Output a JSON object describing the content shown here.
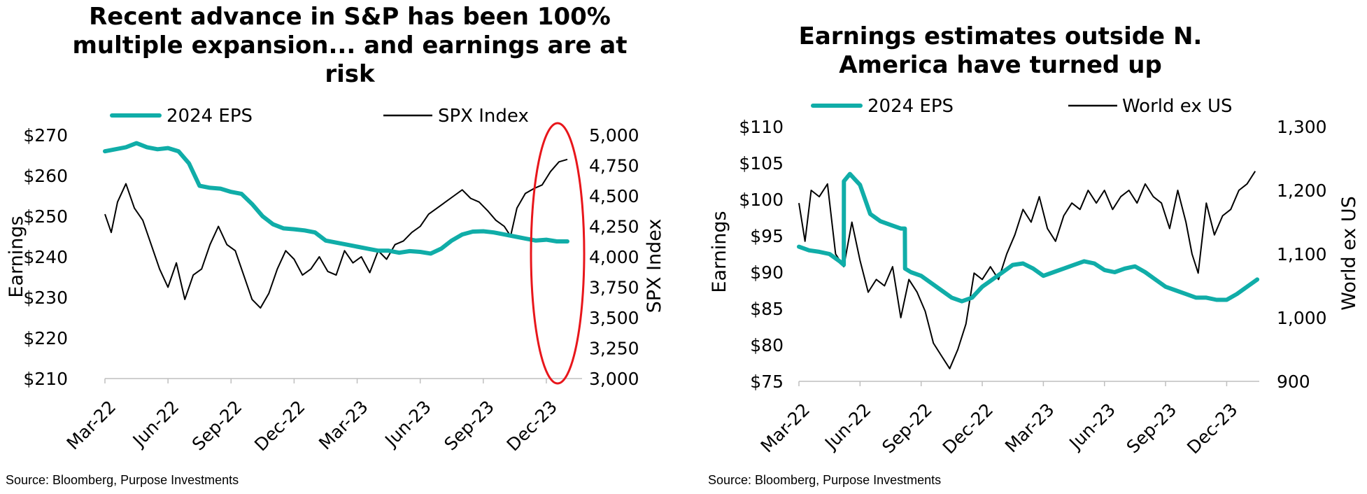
{
  "charts": [
    {
      "title": "Recent advance in S&P has been 100% multiple expansion... and earnings are at risk",
      "source": "Source: Bloomberg, Purpose Investments",
      "legend": {
        "eps": "2024 EPS",
        "index": "SPX Index"
      },
      "colors": {
        "eps": "#10ADA8",
        "index": "#000000",
        "highlight": "#E8161B"
      }
    },
    {
      "title": "Earnings estimates outside N. America have turned up",
      "source": "Source: Bloomberg, Purpose Investments",
      "legend": {
        "eps": "2024 EPS",
        "index": "World ex US"
      },
      "colors": {
        "eps": "#10ADA8",
        "index": "#000000"
      }
    }
  ],
  "chart_data": [
    {
      "type": "line",
      "title": "Recent advance in S&P has been 100% multiple expansion... and earnings are at risk",
      "xlabel": "",
      "ylabel": "Earnings",
      "y2label": "SPX Index",
      "xlim": [
        0,
        22.7
      ],
      "x_ticks": [
        "Mar-22",
        "Jun-22",
        "Sep-22",
        "Dec-22",
        "Mar-23",
        "Jun-23",
        "Sep-23",
        "Dec-23"
      ],
      "ylim": [
        210,
        270
      ],
      "y_ticks": [
        "$210",
        "$220",
        "$230",
        "$240",
        "$250",
        "$260",
        "$270"
      ],
      "y2lim": [
        3000,
        5000
      ],
      "y2_ticks": [
        "3,000",
        "3,250",
        "3,500",
        "3,750",
        "4,000",
        "4,250",
        "4,500",
        "4,750",
        "5,000"
      ],
      "legend_position": "top",
      "annotation": "red ellipse highlighting the Dec-23 rally",
      "series": [
        {
          "name": "2024 EPS",
          "axis": "left",
          "x": [
            0,
            0.5,
            1,
            1.5,
            2,
            2.5,
            3,
            3.5,
            4,
            4.5,
            5,
            5.5,
            6,
            6.5,
            7,
            7.5,
            8,
            8.5,
            9,
            9.5,
            10,
            10.5,
            11,
            11.5,
            12,
            12.5,
            13,
            13.5,
            14,
            14.5,
            15,
            15.5,
            16,
            16.5,
            17,
            17.5,
            18,
            18.5,
            19,
            19.5,
            20,
            20.5,
            21,
            21.5,
            22
          ],
          "values": [
            266,
            266.5,
            267,
            268,
            267,
            266.5,
            266.8,
            266,
            263,
            257.5,
            257,
            256.8,
            256,
            255.5,
            253,
            250,
            248,
            247,
            246.8,
            246.5,
            246,
            244,
            243.5,
            243,
            242.5,
            242,
            241.5,
            241.5,
            241,
            241.4,
            241.2,
            240.8,
            242,
            244,
            245.5,
            246.2,
            246.3,
            246,
            245.5,
            245,
            244.5,
            244,
            244.2,
            243.8,
            243.8
          ]
        },
        {
          "name": "SPX Index",
          "axis": "right",
          "x": [
            0,
            0.3,
            0.6,
            1,
            1.4,
            1.8,
            2.2,
            2.6,
            3,
            3.4,
            3.8,
            4.2,
            4.6,
            5,
            5.4,
            5.8,
            6.2,
            6.6,
            7,
            7.4,
            7.8,
            8.2,
            8.6,
            9,
            9.4,
            9.8,
            10.2,
            10.6,
            11,
            11.4,
            11.8,
            12.2,
            12.6,
            13,
            13.4,
            13.8,
            14.2,
            14.6,
            15,
            15.4,
            15.8,
            16.2,
            16.6,
            17,
            17.4,
            17.8,
            18.2,
            18.6,
            19,
            19.3,
            19.6,
            20,
            20.4,
            20.8,
            21.2,
            21.6,
            22
          ],
          "values": [
            4350,
            4200,
            4450,
            4600,
            4400,
            4300,
            4100,
            3900,
            3750,
            3950,
            3650,
            3850,
            3900,
            4100,
            4250,
            4100,
            4050,
            3850,
            3650,
            3580,
            3700,
            3900,
            4050,
            3980,
            3850,
            3900,
            4000,
            3880,
            3850,
            4050,
            3950,
            4000,
            3870,
            4050,
            3980,
            4100,
            4130,
            4200,
            4250,
            4350,
            4400,
            4450,
            4500,
            4550,
            4480,
            4450,
            4380,
            4300,
            4250,
            4170,
            4400,
            4520,
            4560,
            4590,
            4700,
            4780,
            4800
          ]
        }
      ]
    },
    {
      "type": "line",
      "title": "Earnings estimates outside N. America have turned up",
      "xlabel": "",
      "ylabel": "Earnings",
      "y2label": "World ex US",
      "xlim": [
        0,
        22.6
      ],
      "x_ticks": [
        "Mar-22",
        "Jun-22",
        "Sep-22",
        "Dec-22",
        "Mar-23",
        "Jun-23",
        "Sep-23",
        "Dec-23"
      ],
      "ylim": [
        75,
        110
      ],
      "y_ticks": [
        "$75",
        "$80",
        "$85",
        "$90",
        "$95",
        "$100",
        "$105",
        "$110"
      ],
      "y2lim": [
        900,
        1300
      ],
      "y2_ticks": [
        "900",
        "1,000",
        "1,100",
        "1,200",
        "1,300"
      ],
      "legend_position": "top",
      "series": [
        {
          "name": "2024 EPS",
          "axis": "left",
          "x": [
            0,
            0.5,
            1,
            1.5,
            2,
            2.2,
            2.21,
            2.5,
            3,
            3.5,
            4,
            4.5,
            5,
            5.2,
            5.21,
            5.5,
            6,
            6.5,
            7,
            7.5,
            8,
            8.5,
            9,
            9.5,
            10,
            10.5,
            11,
            11.5,
            12,
            12.5,
            13,
            13.5,
            14,
            14.5,
            15,
            15.5,
            16,
            16.5,
            17,
            17.5,
            18,
            18.5,
            19,
            19.5,
            20,
            20.5,
            21,
            21.5,
            22,
            22.5
          ],
          "values": [
            93.5,
            93,
            92.8,
            92.5,
            91.5,
            91,
            102.5,
            103.5,
            102,
            98,
            97,
            96.5,
            96,
            96,
            90.5,
            90,
            89.5,
            88.5,
            87.5,
            86.5,
            86,
            86.5,
            88,
            89,
            90,
            91,
            91.2,
            90.5,
            89.5,
            90,
            90.5,
            91,
            91.5,
            91.2,
            90.3,
            90,
            90.5,
            90.8,
            90,
            89,
            88,
            87.5,
            87,
            86.5,
            86.5,
            86.2,
            86.2,
            87,
            88,
            89
          ]
        },
        {
          "name": "World ex US",
          "axis": "right",
          "x": [
            0,
            0.3,
            0.6,
            1,
            1.4,
            1.8,
            2.2,
            2.6,
            3,
            3.4,
            3.8,
            4.2,
            4.6,
            5,
            5.4,
            5.8,
            6.2,
            6.6,
            7,
            7.4,
            7.8,
            8.2,
            8.6,
            9,
            9.4,
            9.8,
            10.2,
            10.6,
            11,
            11.4,
            11.8,
            12.2,
            12.6,
            13,
            13.4,
            13.8,
            14.2,
            14.6,
            15,
            15.4,
            15.8,
            16.2,
            16.6,
            17,
            17.4,
            17.8,
            18.2,
            18.6,
            19,
            19.3,
            19.6,
            20,
            20.4,
            20.8,
            21.2,
            21.6,
            22,
            22.4
          ],
          "values": [
            1180,
            1120,
            1200,
            1190,
            1210,
            1100,
            1080,
            1150,
            1090,
            1040,
            1060,
            1050,
            1080,
            1000,
            1060,
            1040,
            1010,
            960,
            940,
            920,
            950,
            990,
            1070,
            1060,
            1080,
            1060,
            1100,
            1130,
            1170,
            1150,
            1190,
            1140,
            1120,
            1160,
            1180,
            1170,
            1200,
            1180,
            1200,
            1170,
            1190,
            1200,
            1180,
            1210,
            1190,
            1180,
            1140,
            1200,
            1150,
            1100,
            1070,
            1180,
            1130,
            1160,
            1170,
            1200,
            1210,
            1230
          ]
        }
      ]
    }
  ]
}
